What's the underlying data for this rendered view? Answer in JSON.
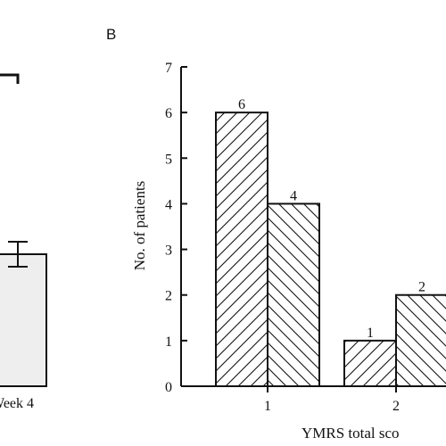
{
  "panel_a": {
    "x_tick_label": "Week 4"
  },
  "panel_b": {
    "label": "B"
  },
  "chart_data": [
    {
      "panel": "A",
      "type": "bar",
      "categories": [
        "Week 4"
      ],
      "values": [
        null
      ],
      "xlabel": "Week 4"
    },
    {
      "panel": "B",
      "type": "bar",
      "categories": [
        "1",
        "2"
      ],
      "series": [
        {
          "values": [
            6,
            1
          ],
          "pattern": "hatch-forward"
        },
        {
          "values": [
            4,
            2
          ],
          "pattern": "hatch-back"
        }
      ],
      "data_labels": [
        [
          "6",
          "1"
        ],
        [
          "4",
          "2"
        ]
      ],
      "ylabel": "No. of patients",
      "xlabel": "YMRS total sco",
      "ylim": [
        0,
        7
      ],
      "yticks": [
        "0",
        "1",
        "2",
        "3",
        "4",
        "5",
        "6",
        "7"
      ],
      "grid": false,
      "legend": "none"
    }
  ]
}
